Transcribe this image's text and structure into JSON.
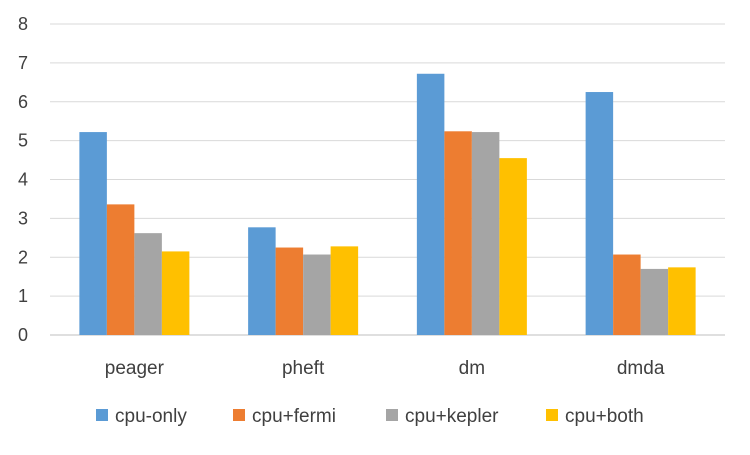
{
  "chart_data": {
    "type": "bar",
    "title": "",
    "xlabel": "",
    "ylabel": "",
    "categories": [
      "peager",
      "pheft",
      "dm",
      "dmda"
    ],
    "series": [
      {
        "name": "cpu-only",
        "color": "#5B9BD5",
        "values": [
          5.22,
          2.77,
          6.72,
          6.25
        ]
      },
      {
        "name": "cpu+fermi",
        "color": "#ED7D31",
        "values": [
          3.36,
          2.25,
          5.24,
          2.07
        ]
      },
      {
        "name": "cpu+kepler",
        "color": "#A5A5A5",
        "values": [
          2.62,
          2.07,
          5.22,
          1.7
        ]
      },
      {
        "name": "cpu+both",
        "color": "#FFC000",
        "values": [
          2.15,
          2.28,
          4.55,
          1.74
        ]
      }
    ],
    "ylim": [
      0,
      8
    ],
    "yticks": [
      "0",
      "1",
      "2",
      "3",
      "4",
      "5",
      "6",
      "7",
      "8"
    ],
    "grid": true,
    "legend": "bottom",
    "grid_color": "#D9D9D9",
    "axis_color": "#BFBFBF"
  }
}
